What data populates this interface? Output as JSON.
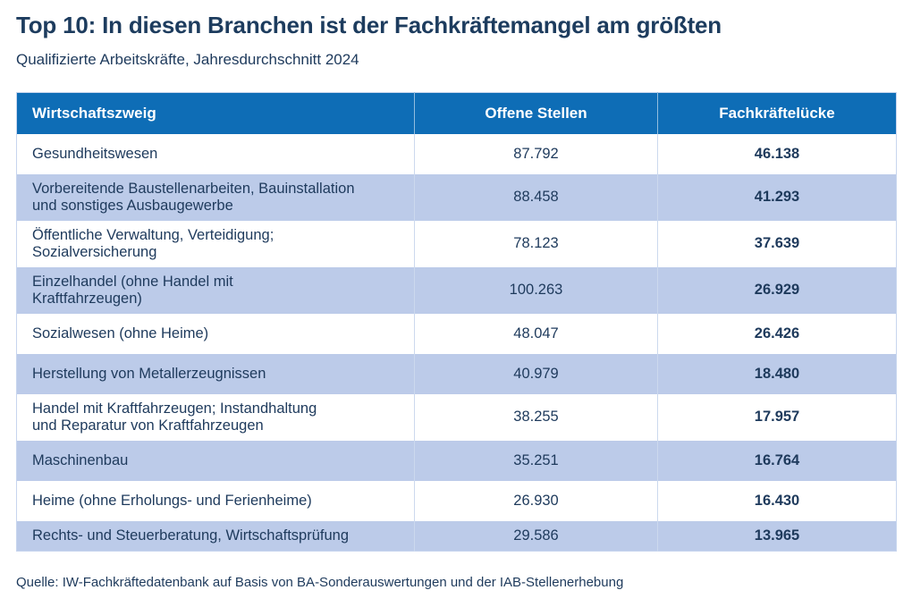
{
  "page": {
    "title": "Top 10: In diesen Branchen ist der Fachkräftemangel am größten",
    "subtitle": "Qualifizierte Arbeitskräfte, Jahresdurchschnitt 2024",
    "source": "Quelle: IW-Fachkräftedatenbank auf Basis von BA-Sonderauswertungen und der IAB-Stellenerhebung"
  },
  "colors": {
    "header_bg": "#0e6db6",
    "alt_row_bg": "#bccbe9",
    "text_navy": "#1e3a5c",
    "header_text": "#ffffff"
  },
  "chart_data": {
    "type": "table",
    "title": "Top 10: In diesen Branchen ist der Fachkräftemangel am größten",
    "subtitle": "Qualifizierte Arbeitskräfte, Jahresdurchschnitt 2024",
    "columns": [
      "Wirtschaftszweig",
      "Offene Stellen",
      "Fachkräftelücke"
    ],
    "rows": [
      [
        "Gesundheitswesen",
        "87.792",
        "46.138"
      ],
      [
        "Vorbereitende Baustellenarbeiten, Bauinstallation\nund sonstiges Ausbaugewerbe",
        "88.458",
        "41.293"
      ],
      [
        "Öffentliche Verwaltung, Verteidigung;\nSozialversicherung",
        "78.123",
        "37.639"
      ],
      [
        "Einzelhandel (ohne Handel mit\nKraftfahrzeugen)",
        "100.263",
        "26.929"
      ],
      [
        "Sozialwesen (ohne Heime)",
        "48.047",
        "26.426"
      ],
      [
        "Herstellung von Metallerzeugnissen",
        "40.979",
        "18.480"
      ],
      [
        "Handel mit Kraftfahrzeugen; Instandhaltung\nund Reparatur von Kraftfahrzeugen",
        "38.255",
        "17.957"
      ],
      [
        "Maschinenbau",
        "35.251",
        "16.764"
      ],
      [
        "Heime (ohne Erholungs- und Ferienheime)",
        "26.930",
        "16.430"
      ],
      [
        "Rechts- und Steuerberatung, Wirtschaftsprüfung",
        "29.586",
        "13.965"
      ]
    ]
  }
}
